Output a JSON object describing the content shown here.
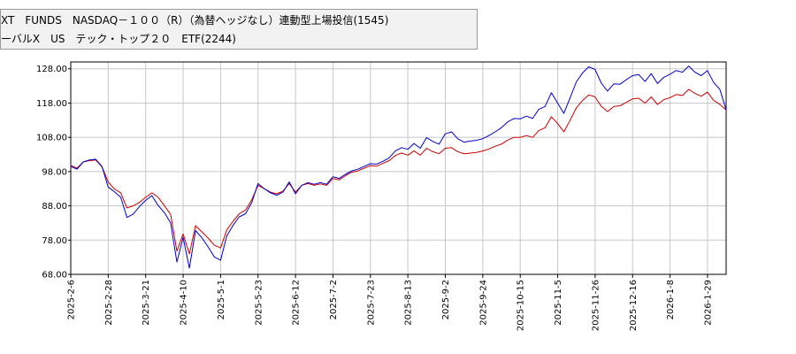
{
  "legend": {
    "items": [
      {
        "label": "XT　FUNDS　NASDAQ－１００（R）（為替ヘッジなし）連動型上場投信(1545)",
        "color": "#0000cc"
      },
      {
        "label": "ーバルX　US　テック・トップ２０　ETF(2244)",
        "color": "#cc0000"
      }
    ]
  },
  "chart_data": {
    "type": "line",
    "ylim": [
      68,
      130
    ],
    "y_ticks": [
      "68.00",
      "78.00",
      "88.00",
      "98.00",
      "108.00",
      "118.00",
      "128.00"
    ],
    "x_ticks": [
      "2025-2-6",
      "2025-2-28",
      "2025-3-21",
      "2025-4-10",
      "2025-5-1",
      "2025-5-23",
      "2025-6-12",
      "2025-7-2",
      "2025-7-23",
      "2025-8-13",
      "2025-9-2",
      "2025-9-24",
      "2025-10-15",
      "2025-11-5",
      "2025-11-26",
      "2025-12-16",
      "2026-1-8",
      "2026-1-29"
    ],
    "grid": true,
    "series": [
      {
        "color": "#0000cc",
        "points": [
          [
            0,
            99.5
          ],
          [
            1,
            98.7
          ],
          [
            2,
            100.8
          ],
          [
            3,
            101.4
          ],
          [
            4,
            101.6
          ],
          [
            5,
            99.5
          ],
          [
            6,
            93.5
          ],
          [
            7,
            92.1
          ],
          [
            8,
            90.5
          ],
          [
            9,
            84.6
          ],
          [
            10,
            85.6
          ],
          [
            11,
            87.8
          ],
          [
            12,
            89.6
          ],
          [
            13,
            91.0
          ],
          [
            14,
            88.1
          ],
          [
            15,
            86.0
          ],
          [
            16,
            83.0
          ],
          [
            17,
            71.6
          ],
          [
            18,
            78.8
          ],
          [
            19,
            69.8
          ],
          [
            20,
            80.8
          ],
          [
            21,
            78.7
          ],
          [
            22,
            76.0
          ],
          [
            23,
            73.1
          ],
          [
            24,
            72.1
          ],
          [
            25,
            79.2
          ],
          [
            26,
            82.3
          ],
          [
            27,
            84.8
          ],
          [
            28,
            85.7
          ],
          [
            29,
            89.0
          ],
          [
            30,
            94.5
          ],
          [
            31,
            93.0
          ],
          [
            32,
            91.8
          ],
          [
            33,
            91.1
          ],
          [
            34,
            92.0
          ],
          [
            35,
            95.0
          ],
          [
            36,
            91.5
          ],
          [
            37,
            94.0
          ],
          [
            38,
            94.8
          ],
          [
            39,
            94.3
          ],
          [
            40,
            94.8
          ],
          [
            41,
            94.3
          ],
          [
            42,
            96.5
          ],
          [
            43,
            96.0
          ],
          [
            44,
            97.2
          ],
          [
            45,
            98.2
          ],
          [
            46,
            98.7
          ],
          [
            47,
            99.5
          ],
          [
            48,
            100.3
          ],
          [
            49,
            100.2
          ],
          [
            50,
            101.0
          ],
          [
            51,
            102.0
          ],
          [
            52,
            104.0
          ],
          [
            53,
            105.0
          ],
          [
            54,
            104.5
          ],
          [
            55,
            106.2
          ],
          [
            56,
            104.8
          ],
          [
            57,
            107.9
          ],
          [
            58,
            106.8
          ],
          [
            59,
            106.0
          ],
          [
            60,
            109.0
          ],
          [
            61,
            109.6
          ],
          [
            62,
            107.6
          ],
          [
            63,
            106.6
          ],
          [
            64,
            106.9
          ],
          [
            65,
            107.1
          ],
          [
            66,
            107.6
          ],
          [
            67,
            108.5
          ],
          [
            68,
            109.6
          ],
          [
            69,
            110.8
          ],
          [
            70,
            112.5
          ],
          [
            71,
            113.5
          ],
          [
            72,
            113.4
          ],
          [
            73,
            114.2
          ],
          [
            74,
            113.5
          ],
          [
            75,
            116.2
          ],
          [
            76,
            117.0
          ],
          [
            77,
            121.0
          ],
          [
            78,
            118.0
          ],
          [
            79,
            115.0
          ],
          [
            80,
            119.5
          ],
          [
            81,
            124.2
          ],
          [
            82,
            126.8
          ],
          [
            83,
            128.6
          ],
          [
            84,
            127.8
          ],
          [
            85,
            123.8
          ],
          [
            86,
            121.5
          ],
          [
            87,
            123.6
          ],
          [
            88,
            123.5
          ],
          [
            89,
            124.8
          ],
          [
            90,
            126.0
          ],
          [
            91,
            126.3
          ],
          [
            92,
            124.3
          ],
          [
            93,
            126.6
          ],
          [
            94,
            123.7
          ],
          [
            95,
            125.5
          ],
          [
            96,
            126.4
          ],
          [
            97,
            127.5
          ],
          [
            98,
            127.0
          ],
          [
            99,
            128.8
          ],
          [
            100,
            127.0
          ],
          [
            101,
            126.0
          ],
          [
            102,
            127.5
          ],
          [
            103,
            124.0
          ],
          [
            104,
            122.0
          ],
          [
            105,
            116.0
          ]
        ]
      },
      {
        "color": "#cc0000",
        "points": [
          [
            0,
            99.8
          ],
          [
            1,
            99.0
          ],
          [
            2,
            100.8
          ],
          [
            3,
            101.2
          ],
          [
            4,
            101.4
          ],
          [
            5,
            99.4
          ],
          [
            6,
            95.0
          ],
          [
            7,
            92.9
          ],
          [
            8,
            91.8
          ],
          [
            9,
            87.4
          ],
          [
            10,
            88.0
          ],
          [
            11,
            89.0
          ],
          [
            12,
            90.5
          ],
          [
            13,
            91.8
          ],
          [
            14,
            90.5
          ],
          [
            15,
            88.0
          ],
          [
            16,
            85.5
          ],
          [
            17,
            74.8
          ],
          [
            18,
            79.8
          ],
          [
            19,
            74.0
          ],
          [
            20,
            82.2
          ],
          [
            21,
            80.4
          ],
          [
            22,
            78.6
          ],
          [
            23,
            76.5
          ],
          [
            24,
            75.7
          ],
          [
            25,
            81.0
          ],
          [
            26,
            83.5
          ],
          [
            27,
            85.7
          ],
          [
            28,
            86.8
          ],
          [
            29,
            89.8
          ],
          [
            30,
            94.0
          ],
          [
            31,
            93.0
          ],
          [
            32,
            92.0
          ],
          [
            33,
            91.5
          ],
          [
            34,
            92.3
          ],
          [
            35,
            94.5
          ],
          [
            36,
            92.0
          ],
          [
            37,
            94.0
          ],
          [
            38,
            94.5
          ],
          [
            39,
            94.0
          ],
          [
            40,
            94.4
          ],
          [
            41,
            94.0
          ],
          [
            42,
            96.0
          ],
          [
            43,
            95.6
          ],
          [
            44,
            96.8
          ],
          [
            45,
            97.8
          ],
          [
            46,
            98.2
          ],
          [
            47,
            99.0
          ],
          [
            48,
            99.7
          ],
          [
            49,
            99.6
          ],
          [
            50,
            100.4
          ],
          [
            51,
            101.2
          ],
          [
            52,
            102.7
          ],
          [
            53,
            103.4
          ],
          [
            54,
            102.8
          ],
          [
            55,
            104.0
          ],
          [
            56,
            102.8
          ],
          [
            57,
            104.8
          ],
          [
            58,
            103.8
          ],
          [
            59,
            103.2
          ],
          [
            60,
            104.8
          ],
          [
            61,
            105.0
          ],
          [
            62,
            103.8
          ],
          [
            63,
            103.2
          ],
          [
            64,
            103.4
          ],
          [
            65,
            103.6
          ],
          [
            66,
            104.0
          ],
          [
            67,
            104.6
          ],
          [
            68,
            105.4
          ],
          [
            69,
            106.0
          ],
          [
            70,
            107.2
          ],
          [
            71,
            108.0
          ],
          [
            72,
            108.0
          ],
          [
            73,
            108.5
          ],
          [
            74,
            108.0
          ],
          [
            75,
            110.0
          ],
          [
            76,
            110.8
          ],
          [
            77,
            114.0
          ],
          [
            78,
            112.0
          ],
          [
            79,
            109.6
          ],
          [
            80,
            113.0
          ],
          [
            81,
            116.6
          ],
          [
            82,
            118.8
          ],
          [
            83,
            120.4
          ],
          [
            84,
            119.8
          ],
          [
            85,
            117.0
          ],
          [
            86,
            115.5
          ],
          [
            87,
            117.0
          ],
          [
            88,
            117.2
          ],
          [
            89,
            118.2
          ],
          [
            90,
            119.2
          ],
          [
            91,
            119.4
          ],
          [
            92,
            118.0
          ],
          [
            93,
            119.8
          ],
          [
            94,
            117.6
          ],
          [
            95,
            119.0
          ],
          [
            96,
            119.6
          ],
          [
            97,
            120.5
          ],
          [
            98,
            120.2
          ],
          [
            99,
            122.0
          ],
          [
            100,
            120.8
          ],
          [
            101,
            120.0
          ],
          [
            102,
            121.2
          ],
          [
            103,
            118.8
          ],
          [
            104,
            117.6
          ],
          [
            105,
            116.0
          ]
        ]
      }
    ]
  }
}
